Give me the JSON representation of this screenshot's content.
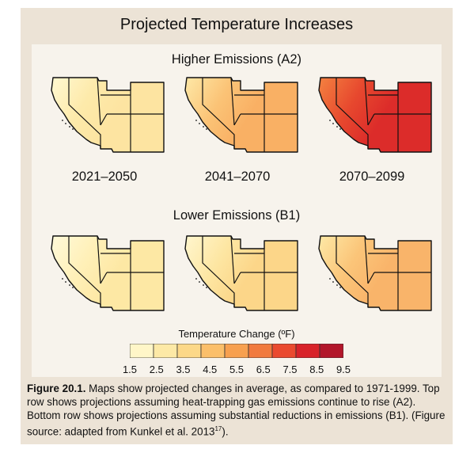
{
  "title": "Projected Temperature Increases",
  "rows": [
    {
      "label": "Higher Emissions (A2)"
    },
    {
      "label": "Lower Emissions (B1)"
    }
  ],
  "periods": [
    "2021–2050",
    "2041–2070",
    "2070–2099"
  ],
  "legend": {
    "title": "Temperature Change (ºF)",
    "ticks": [
      "1.5",
      "2.5",
      "3.5",
      "4.5",
      "5.5",
      "6.5",
      "7.5",
      "8.5",
      "9.5"
    ],
    "colors": [
      "#fff6c8",
      "#fde9a6",
      "#fcd888",
      "#fbbf6a",
      "#f7a04f",
      "#f17a3e",
      "#ea4a2f",
      "#d8232a",
      "#b2162a"
    ]
  },
  "maps": [
    {
      "row": 0,
      "period": "2021–2050",
      "coast": "#fff6cc",
      "mid": "#fdeaaa",
      "east": "#fde4a1"
    },
    {
      "row": 0,
      "period": "2041–2070",
      "coast": "#fde3a0",
      "mid": "#fbc376",
      "east": "#f9b064"
    },
    {
      "row": 0,
      "period": "2070–2099",
      "coast": "#f27a3e",
      "mid": "#e7482e",
      "east": "#dc2c2a"
    },
    {
      "row": 1,
      "period": "2021–2050",
      "coast": "#fff8d5",
      "mid": "#fff0b8",
      "east": "#fde8a4"
    },
    {
      "row": 1,
      "period": "2041–2070",
      "coast": "#fff4c8",
      "mid": "#fde6a2",
      "east": "#fcd689"
    },
    {
      "row": 1,
      "period": "2070–2099",
      "coast": "#fde4a0",
      "mid": "#fbc579",
      "east": "#f9b46a"
    }
  ],
  "caption": {
    "label": "Figure 20.1.",
    "text": " Maps show projected changes in average, as compared to 1971-1999. Top row shows projections assuming heat-trapping gas emissions continue to rise (A2). Bottom row shows projections assuming substantial reductions in emissions (B1). (Figure source: adapted from Kunkel et al. 2013",
    "ref": "17",
    "end": ")."
  }
}
